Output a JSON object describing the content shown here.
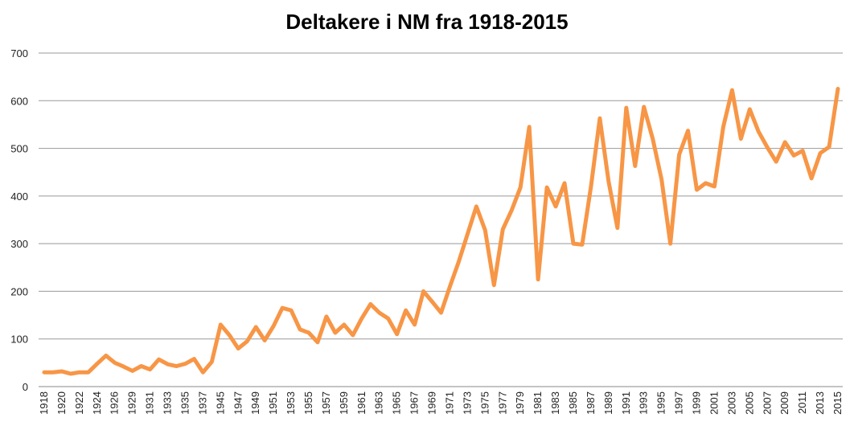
{
  "chart_data": {
    "type": "line",
    "title": "Deltakere i NM fra 1918-2015",
    "categories": [
      "1918",
      null,
      "1920",
      null,
      "1922",
      null,
      "1924",
      null,
      "1926",
      null,
      "1929",
      null,
      "1931",
      null,
      "1933",
      null,
      "1935",
      null,
      "1937",
      null,
      "1945",
      null,
      "1947",
      null,
      "1949",
      null,
      "1951",
      null,
      "1953",
      null,
      "1955",
      null,
      "1957",
      null,
      "1959",
      null,
      "1961",
      null,
      "1963",
      null,
      "1965",
      null,
      "1967",
      null,
      "1969",
      null,
      "1971",
      null,
      "1973",
      null,
      "1975",
      null,
      "1977",
      null,
      "1979",
      null,
      "1981",
      null,
      "1983",
      null,
      "1985",
      null,
      "1987",
      null,
      "1989",
      null,
      "1991",
      null,
      "1993",
      null,
      "1995",
      null,
      "1997",
      null,
      "1999",
      null,
      "2001",
      null,
      "2003",
      null,
      "2005",
      null,
      "2007",
      null,
      "2009",
      null,
      "2011",
      null,
      "2013",
      null,
      "2015"
    ],
    "values": [
      30,
      30,
      32,
      27,
      30,
      30,
      48,
      65,
      50,
      42,
      33,
      43,
      36,
      57,
      47,
      43,
      48,
      58,
      30,
      52,
      130,
      108,
      80,
      95,
      125,
      97,
      127,
      165,
      160,
      120,
      113,
      93,
      147,
      113,
      130,
      108,
      143,
      173,
      155,
      143,
      110,
      160,
      130,
      200,
      178,
      155,
      210,
      262,
      320,
      378,
      328,
      213,
      330,
      370,
      418,
      545,
      225,
      418,
      378,
      427,
      300,
      298,
      420,
      563,
      430,
      333,
      585,
      463,
      587,
      520,
      435,
      300,
      487,
      537,
      413,
      427,
      420,
      545,
      622,
      520,
      582,
      535,
      502,
      472,
      513,
      485,
      495,
      437,
      490,
      503,
      625
    ],
    "color": "#f79646",
    "ylim": [
      0,
      700
    ],
    "yticks": [
      0,
      100,
      200,
      300,
      400,
      500,
      600,
      700
    ],
    "grid": true
  }
}
